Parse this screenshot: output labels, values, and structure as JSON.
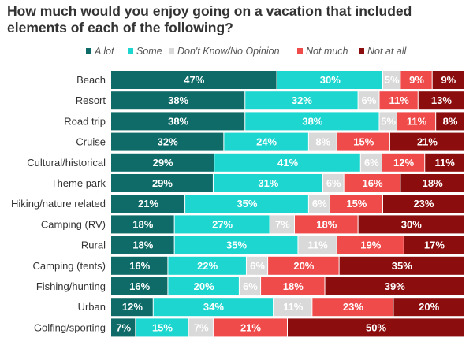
{
  "title": "How much would you enjoy going on a vacation that included elements of each of the following?",
  "colors": {
    "a_lot": "#0e6b68",
    "some": "#1ed6d0",
    "dont_know": "#d9d9d9",
    "not_much": "#f04b4b",
    "not_at_all": "#8c0d0d"
  },
  "chart_data": {
    "type": "bar",
    "orientation": "horizontal",
    "stacked": true,
    "title": "How much would you enjoy going on a vacation that included elements of each of the following?",
    "legend": {
      "position": "top",
      "entries": [
        "A lot",
        "Some",
        "Don't Know/No Opinion",
        "Not much",
        "Not at all"
      ]
    },
    "categories": [
      "Beach",
      "Resort",
      "Road trip",
      "Cruise",
      "Cultural/historical",
      "Theme park",
      "Hiking/nature related",
      "Camping (RV)",
      "Rural",
      "Camping (tents)",
      "Fishing/hunting",
      "Urban",
      "Golfing/sporting"
    ],
    "series": [
      {
        "name": "A lot",
        "color": "#0e6b68",
        "values": [
          47,
          38,
          38,
          32,
          29,
          29,
          21,
          18,
          18,
          16,
          16,
          12,
          7
        ]
      },
      {
        "name": "Some",
        "color": "#1ed6d0",
        "values": [
          30,
          32,
          38,
          24,
          41,
          31,
          35,
          27,
          35,
          22,
          20,
          34,
          15
        ]
      },
      {
        "name": "Don't Know/No Opinion",
        "color": "#d9d9d9",
        "values": [
          5,
          6,
          5,
          8,
          6,
          6,
          6,
          7,
          11,
          6,
          6,
          11,
          7
        ]
      },
      {
        "name": "Not much",
        "color": "#f04b4b",
        "values": [
          9,
          11,
          11,
          15,
          12,
          16,
          15,
          18,
          19,
          20,
          18,
          23,
          21
        ]
      },
      {
        "name": "Not at all",
        "color": "#8c0d0d",
        "values": [
          9,
          13,
          8,
          21,
          11,
          18,
          23,
          30,
          17,
          35,
          39,
          20,
          50
        ]
      }
    ],
    "unit": "%",
    "grid": false
  }
}
